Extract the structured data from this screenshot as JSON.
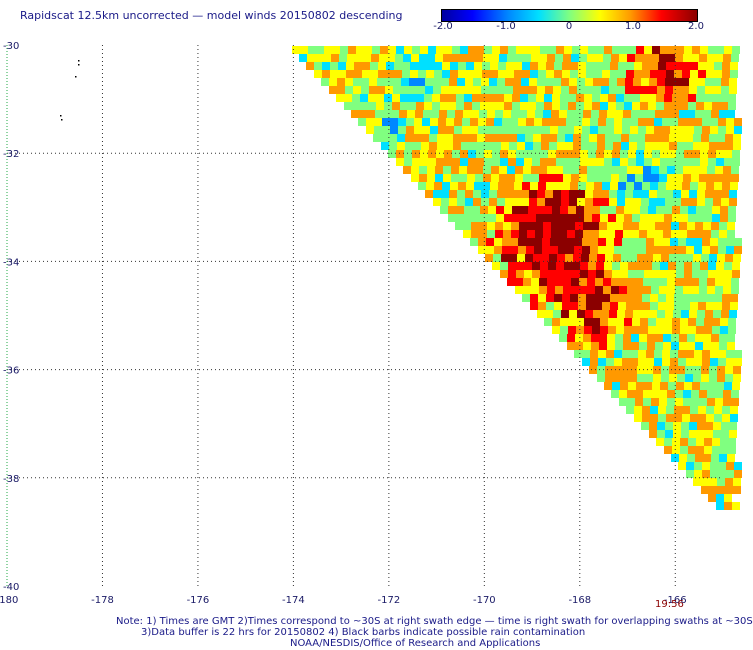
{
  "title": "Rapidscat 12.5km uncorrected — model winds 20150802 descending",
  "colorbar": {
    "labels": [
      "-2.0",
      "-1.0",
      "0",
      "1.0",
      "2.0"
    ],
    "values": [
      -2.0,
      -1.0,
      0,
      1.0,
      2.0
    ],
    "range": [
      -2.0,
      2.0
    ],
    "colors": [
      "#0000a0",
      "#0000ff",
      "#0088ff",
      "#00e0ff",
      "#80ff80",
      "#ffff00",
      "#ff9900",
      "#ff0000",
      "#8b0000"
    ]
  },
  "axes": {
    "lon_ticks": [
      {
        "value": -180,
        "label": "-180"
      },
      {
        "value": -178,
        "label": "-178"
      },
      {
        "value": -176,
        "label": "-176"
      },
      {
        "value": -174,
        "label": "-174"
      },
      {
        "value": -172,
        "label": "-172"
      },
      {
        "value": -170,
        "label": "-170"
      },
      {
        "value": -168,
        "label": "-168"
      },
      {
        "value": -166,
        "label": "-166"
      }
    ],
    "lat_ticks": [
      {
        "value": -30,
        "label": "-30"
      },
      {
        "value": -32,
        "label": "-32"
      },
      {
        "value": -34,
        "label": "-34"
      },
      {
        "value": -36,
        "label": "-36"
      },
      {
        "value": -38,
        "label": "-38"
      },
      {
        "value": -40,
        "label": "-40"
      }
    ],
    "lon_range": [
      -180,
      -165
    ],
    "lat_range": [
      -40,
      -30
    ],
    "grid": true
  },
  "time_label": "19:56",
  "notes": [
    "Note: 1) Times are GMT 2)Times correspond to ~30S at right swath edge — time is right swath for overlapping swaths at ~30S",
    "3)Data buffer is 22 hrs for 20150802 4) Black barbs indicate possible rain contamination",
    "NOAA/NESDIS/Office of Research and Applications"
  ]
}
